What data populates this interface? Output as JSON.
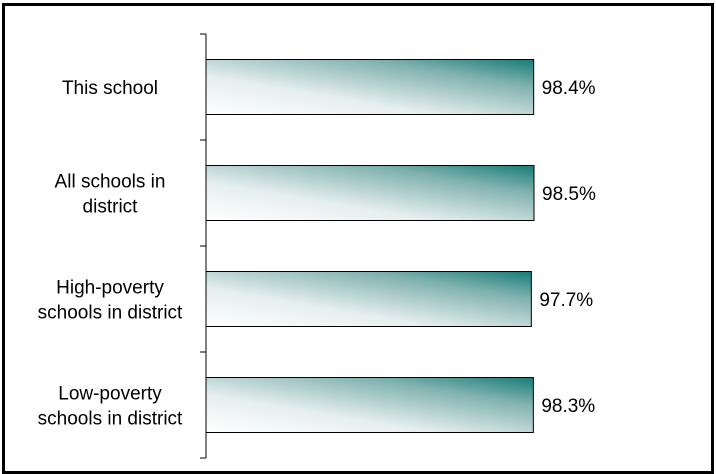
{
  "chart_data": {
    "type": "bar",
    "orientation": "horizontal",
    "title": "",
    "xlabel": "",
    "ylabel": "",
    "categories": [
      [
        "This school"
      ],
      [
        "All schools in",
        "district"
      ],
      [
        "High-poverty",
        "schools in district"
      ],
      [
        "Low-poverty",
        "schools in district"
      ]
    ],
    "values": [
      98.4,
      98.5,
      97.7,
      98.3
    ],
    "value_labels": [
      "98.4%",
      "98.5%",
      "97.7%",
      "98.3%"
    ],
    "xlim": [
      0,
      100
    ],
    "grid": false,
    "legend": "none",
    "colors": {
      "bar_dark": "#167c78",
      "bar_light": "#ffffff",
      "bar_edge": "#000000"
    }
  }
}
